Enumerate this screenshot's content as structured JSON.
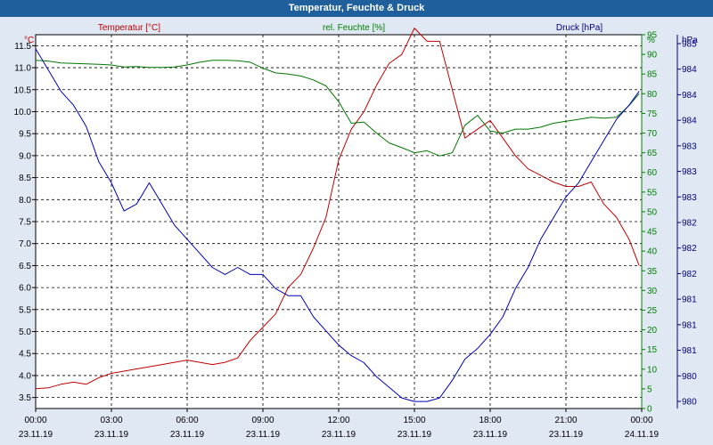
{
  "window": {
    "title": "Temperatur, Feuchte & Druck"
  },
  "chart_data": {
    "type": "line",
    "title": "Temperatur, Feuchte & Druck",
    "xlabel": "",
    "x_ticks": [
      {
        "time": "00:00",
        "date": "23.11.19"
      },
      {
        "time": "03:00",
        "date": "23.11.19"
      },
      {
        "time": "06:00",
        "date": "23.11.19"
      },
      {
        "time": "09:00",
        "date": "23.11.19"
      },
      {
        "time": "12:00",
        "date": "23.11.19"
      },
      {
        "time": "15:00",
        "date": "23.11.19"
      },
      {
        "time": "18:00",
        "date": "23.11.19"
      },
      {
        "time": "21:00",
        "date": "23.11.19"
      },
      {
        "time": "00:00",
        "date": "24.11.19"
      }
    ],
    "xlim": [
      0,
      24
    ],
    "axes": {
      "temperature": {
        "label": "Temperatur [°C]",
        "unit": "°C",
        "ylim": [
          3.25,
          11.75
        ],
        "ticks": [
          "3.5",
          "4.0",
          "4.5",
          "5.0",
          "5.5",
          "6.0",
          "6.5",
          "7.0",
          "7.5",
          "8.0",
          "8.5",
          "9.0",
          "9.5",
          "10.0",
          "10.5",
          "11.0",
          "11.5"
        ]
      },
      "humidity": {
        "label": "rel. Feuchte [%]",
        "unit": "%",
        "ylim": [
          0,
          95
        ],
        "ticks": [
          "0",
          "5",
          "10",
          "15",
          "20",
          "25",
          "30",
          "35",
          "40",
          "45",
          "50",
          "55",
          "60",
          "65",
          "70",
          "75",
          "80",
          "85",
          "90",
          "95"
        ]
      },
      "pressure": {
        "label": "Druck [hPa]",
        "unit": "hPa",
        "ylim": [
          979.9,
          985.2
        ],
        "ticks": [
          "980",
          "980",
          "981",
          "981",
          "981",
          "982",
          "982",
          "982",
          "983",
          "983",
          "983",
          "984",
          "984",
          "984",
          "985"
        ]
      }
    },
    "colors": {
      "temperature": "#c00000",
      "humidity": "#007800",
      "pressure": "#0000c0",
      "axis_temp_text": "#c00000",
      "axis_hum_text": "#008000",
      "axis_press_text": "#000080"
    },
    "series": [
      {
        "name": "Temperatur",
        "axis": "temperature",
        "color": "#c00000",
        "x": [
          0,
          0.5,
          1,
          1.5,
          2,
          2.5,
          3,
          3.5,
          4,
          4.5,
          5,
          5.5,
          6,
          6.5,
          7,
          7.5,
          8,
          8.5,
          9,
          9.5,
          10,
          10.5,
          11,
          11.5,
          12,
          12.5,
          13,
          13.5,
          14,
          14.5,
          15,
          15.5,
          16,
          16.5,
          17,
          17.5,
          18,
          18.5,
          19,
          19.5,
          20,
          20.5,
          21,
          21.5,
          22,
          22.5,
          23,
          23.5,
          23.9
        ],
        "values": [
          3.7,
          3.72,
          3.8,
          3.85,
          3.8,
          3.95,
          4.05,
          4.1,
          4.15,
          4.2,
          4.25,
          4.3,
          4.35,
          4.3,
          4.25,
          4.3,
          4.4,
          4.8,
          5.1,
          5.4,
          6.0,
          6.3,
          6.9,
          7.6,
          8.9,
          9.6,
          10.0,
          10.6,
          11.1,
          11.3,
          11.9,
          11.6,
          11.6,
          10.5,
          9.4,
          9.6,
          9.8,
          9.4,
          9.0,
          8.7,
          8.55,
          8.4,
          8.3,
          8.3,
          8.4,
          7.9,
          7.6,
          7.1,
          6.5
        ]
      },
      {
        "name": "rel. Feuchte",
        "axis": "humidity",
        "color": "#007800",
        "x": [
          0,
          0.5,
          1,
          1.5,
          2,
          2.5,
          3,
          3.5,
          4,
          4.5,
          5,
          5.5,
          6,
          6.5,
          7,
          7.5,
          8,
          8.5,
          9,
          9.5,
          10,
          10.5,
          11,
          11.5,
          12,
          12.5,
          13,
          13.5,
          14,
          14.5,
          15,
          15.5,
          16,
          16.5,
          17,
          17.5,
          18,
          18.5,
          19,
          19.5,
          20,
          20.5,
          21,
          21.5,
          22,
          22.5,
          23,
          23.5,
          23.9
        ],
        "values": [
          88.5,
          88.3,
          87.8,
          87.7,
          87.6,
          87.5,
          87.3,
          86.8,
          86.9,
          86.7,
          86.7,
          86.8,
          87.3,
          88,
          88.5,
          88.5,
          88.4,
          88,
          86.5,
          85.3,
          85,
          84.5,
          83.5,
          82,
          78,
          72.5,
          72.8,
          70,
          67.5,
          66.3,
          65,
          65.5,
          64.2,
          65,
          72,
          74.5,
          70.5,
          70,
          71,
          71,
          71.5,
          72.5,
          73,
          73.5,
          74,
          73.8,
          74,
          77,
          80
        ]
      },
      {
        "name": "Druck",
        "axis": "pressure",
        "color": "#0000c0",
        "x": [
          0,
          0.5,
          1,
          1.5,
          2,
          2.5,
          3,
          3.5,
          4,
          4.5,
          5,
          5.5,
          6,
          6.5,
          7,
          7.5,
          8,
          8.5,
          9,
          9.5,
          10,
          10.5,
          11,
          11.5,
          12,
          12.5,
          13,
          13.5,
          14,
          14.5,
          15,
          15.5,
          16,
          16.5,
          17,
          17.5,
          18,
          18.5,
          19,
          19.5,
          20,
          20.5,
          21,
          21.5,
          22,
          22.5,
          23,
          23.5,
          23.9
        ],
        "values": [
          985.0,
          984.7,
          984.4,
          984.2,
          983.9,
          983.4,
          983.1,
          982.7,
          982.8,
          983.1,
          982.8,
          982.5,
          982.3,
          982.1,
          981.9,
          981.8,
          981.9,
          981.8,
          981.8,
          981.6,
          981.5,
          981.5,
          981.2,
          981.0,
          980.8,
          980.65,
          980.55,
          980.35,
          980.2,
          980.05,
          980.0,
          980.0,
          980.05,
          980.3,
          980.6,
          980.75,
          980.95,
          981.2,
          981.6,
          981.9,
          982.3,
          982.6,
          982.9,
          983.1,
          983.4,
          983.7,
          984.0,
          984.2,
          984.4
        ]
      }
    ],
    "legend": "top, one label per series above the plot area",
    "grid": true
  }
}
